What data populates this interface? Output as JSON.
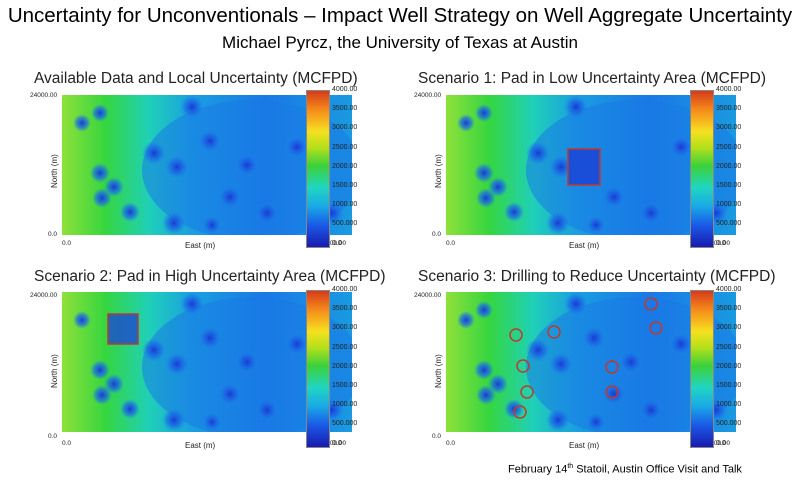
{
  "title": "Uncertainty for Unconventionals – Impact Well Strategy on Well Aggregate Uncertainty",
  "subtitle": "Michael Pyrcz, the University of Texas at Austin",
  "axes": {
    "y_top": "24000.00",
    "origin_y": "0.0",
    "origin_x": "0.0",
    "x_right": "35000.00",
    "xlabel": "East (m)",
    "ylabel": "North (m)"
  },
  "colorbar": [
    "4000.00",
    "3500.00",
    "3000.00",
    "2500.00",
    "2000.00",
    "1500.00",
    "1000.00",
    "500.000",
    "0.0"
  ],
  "panels": [
    {
      "title": "Available Data and Local Uncertainty (MCFPD)"
    },
    {
      "title": "Scenario 1: Pad in Low Uncertainty Area (MCFPD)"
    },
    {
      "title": "Scenario 2: Pad in High Uncertainty Area (MCFPD)"
    },
    {
      "title": "Scenario 3: Drilling to Reduce Uncertainty (MCFPD)"
    }
  ],
  "footer": {
    "prefix": "February 14",
    "sup": "th",
    "suffix": " Statoil, Austin Office Visit and Talk"
  },
  "colors": {
    "pad_box": "#c0392b",
    "new_well_ring": "#c0392b"
  }
}
